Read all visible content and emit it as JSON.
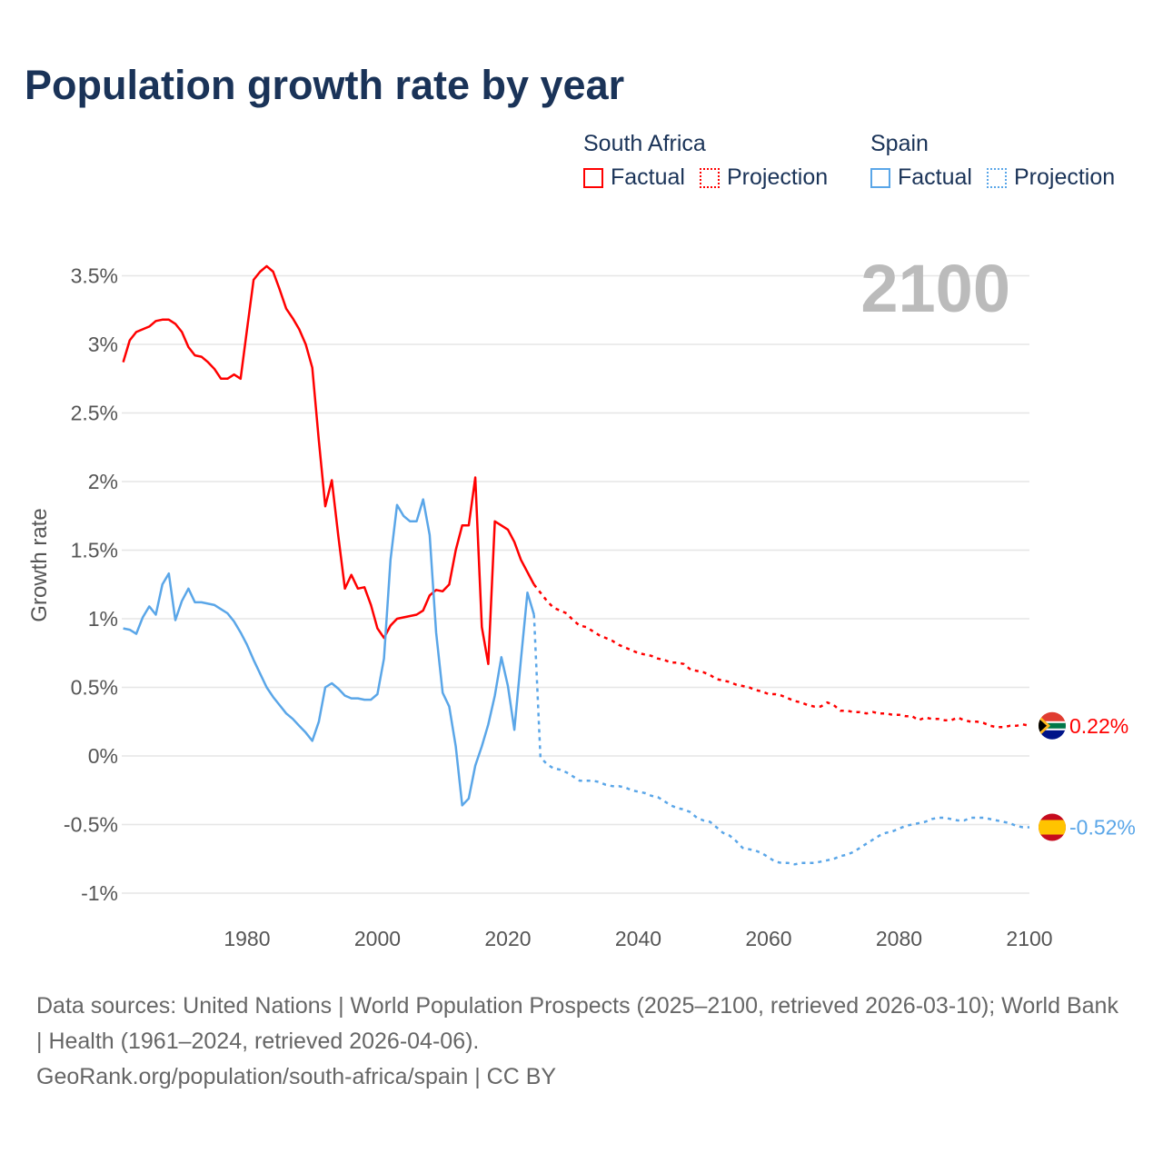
{
  "title": "Population growth rate by year",
  "legend": {
    "groups": [
      {
        "name": "South Africa",
        "color": "#ff0000",
        "factual": "Factual",
        "projection": "Projection"
      },
      {
        "name": "Spain",
        "color": "#5aa6e8",
        "factual": "Factual",
        "projection": "Projection"
      }
    ]
  },
  "year_watermark": "2100",
  "footer": {
    "sources": "Data sources: United Nations | World Population Prospects (2025–2100, retrieved 2026-03-10); World Bank | Health (1961–2024, retrieved 2026-04-06).",
    "credit": "GeoRank.org/population/south-africa/spain | CC BY"
  },
  "chart_data": {
    "type": "line",
    "title": "Population growth rate by year",
    "xlabel": "",
    "ylabel": "Growth rate",
    "xlim": [
      1961,
      2100
    ],
    "ylim": [
      -1.2,
      3.6
    ],
    "x_ticks": [
      1980,
      2000,
      2020,
      2040,
      2060,
      2080,
      2100
    ],
    "y_ticks": [
      -1,
      -0.5,
      0,
      0.5,
      1,
      1.5,
      2,
      2.5,
      3,
      3.5
    ],
    "y_tick_labels": [
      "-1%",
      "-0.5%",
      "0%",
      "0.5%",
      "1%",
      "1.5%",
      "2%",
      "2.5%",
      "3%",
      "3.5%"
    ],
    "grid": true,
    "legend_position": "top-right",
    "series": [
      {
        "name": "South Africa",
        "kind": "Factual",
        "color": "#ff0000",
        "x_start": 1961,
        "values": [
          2.87,
          3.03,
          3.09,
          3.11,
          3.13,
          3.17,
          3.18,
          3.18,
          3.15,
          3.09,
          2.98,
          2.92,
          2.91,
          2.87,
          2.82,
          2.75,
          2.75,
          2.78,
          2.75,
          3.11,
          3.47,
          3.53,
          3.57,
          3.53,
          3.4,
          3.26,
          3.19,
          3.11,
          3.0,
          2.83,
          2.3,
          1.82,
          2.01,
          1.6,
          1.22,
          1.32,
          1.22,
          1.23,
          1.1,
          0.93,
          0.86,
          0.95,
          1.0,
          1.01,
          1.02,
          1.03,
          1.06,
          1.17,
          1.21,
          1.2,
          1.25,
          1.5,
          1.68,
          1.68,
          2.03,
          0.94,
          0.67,
          1.71,
          1.68,
          1.65,
          1.56,
          1.43,
          1.34,
          1.25
        ]
      },
      {
        "name": "South Africa",
        "kind": "Projection",
        "color": "#ff0000",
        "x_start": 2024,
        "values": [
          1.25,
          1.19,
          1.13,
          1.08,
          1.06,
          1.04,
          0.99,
          0.95,
          0.94,
          0.91,
          0.88,
          0.86,
          0.84,
          0.81,
          0.79,
          0.77,
          0.75,
          0.74,
          0.73,
          0.71,
          0.7,
          0.68,
          0.68,
          0.67,
          0.63,
          0.62,
          0.61,
          0.59,
          0.56,
          0.55,
          0.54,
          0.52,
          0.51,
          0.5,
          0.48,
          0.47,
          0.45,
          0.45,
          0.44,
          0.42,
          0.4,
          0.39,
          0.37,
          0.36,
          0.36,
          0.39,
          0.37,
          0.33,
          0.33,
          0.32,
          0.32,
          0.31,
          0.32,
          0.31,
          0.31,
          0.3,
          0.3,
          0.29,
          0.29,
          0.26,
          0.28,
          0.27,
          0.27,
          0.26,
          0.26,
          0.28,
          0.26,
          0.25,
          0.25,
          0.24,
          0.22,
          0.21,
          0.21,
          0.22,
          0.22,
          0.23,
          0.22
        ]
      },
      {
        "name": "Spain",
        "kind": "Factual",
        "color": "#5aa6e8",
        "x_start": 1961,
        "values": [
          0.93,
          0.92,
          0.89,
          1.01,
          1.09,
          1.03,
          1.25,
          1.33,
          0.99,
          1.13,
          1.22,
          1.12,
          1.12,
          1.11,
          1.1,
          1.07,
          1.04,
          0.98,
          0.9,
          0.81,
          0.7,
          0.6,
          0.5,
          0.43,
          0.37,
          0.31,
          0.27,
          0.22,
          0.17,
          0.11,
          0.25,
          0.5,
          0.53,
          0.49,
          0.44,
          0.42,
          0.42,
          0.41,
          0.41,
          0.45,
          0.71,
          1.43,
          1.83,
          1.75,
          1.71,
          1.71,
          1.87,
          1.61,
          0.9,
          0.46,
          0.36,
          0.07,
          -0.36,
          -0.31,
          -0.07,
          0.07,
          0.23,
          0.44,
          0.72,
          0.51,
          0.19,
          0.7,
          1.19,
          1.03
        ]
      },
      {
        "name": "Spain",
        "kind": "Projection",
        "color": "#5aa6e8",
        "x_start": 2024,
        "values": [
          1.03,
          -0.01,
          -0.06,
          -0.09,
          -0.1,
          -0.12,
          -0.15,
          -0.18,
          -0.18,
          -0.18,
          -0.19,
          -0.21,
          -0.22,
          -0.22,
          -0.23,
          -0.25,
          -0.26,
          -0.27,
          -0.29,
          -0.3,
          -0.33,
          -0.36,
          -0.38,
          -0.39,
          -0.41,
          -0.45,
          -0.47,
          -0.48,
          -0.52,
          -0.56,
          -0.58,
          -0.62,
          -0.67,
          -0.68,
          -0.69,
          -0.71,
          -0.74,
          -0.77,
          -0.78,
          -0.78,
          -0.79,
          -0.78,
          -0.78,
          -0.78,
          -0.77,
          -0.76,
          -0.75,
          -0.73,
          -0.72,
          -0.7,
          -0.67,
          -0.64,
          -0.61,
          -0.58,
          -0.56,
          -0.55,
          -0.53,
          -0.51,
          -0.5,
          -0.49,
          -0.48,
          -0.46,
          -0.45,
          -0.45,
          -0.46,
          -0.47,
          -0.47,
          -0.45,
          -0.45,
          -0.45,
          -0.46,
          -0.47,
          -0.48,
          -0.49,
          -0.51,
          -0.52,
          -0.52
        ]
      }
    ],
    "end_labels": [
      {
        "country": "South Africa",
        "text": "0.22%",
        "value": 0.22,
        "color": "#ff0000"
      },
      {
        "country": "Spain",
        "text": "-0.52%",
        "value": -0.52,
        "color": "#5aa6e8"
      }
    ]
  }
}
